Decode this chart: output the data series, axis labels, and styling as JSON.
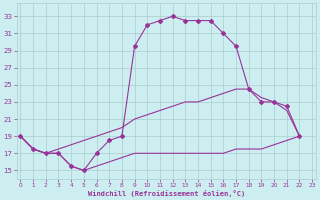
{
  "xlabel": "Windchill (Refroidissement éolien,°C)",
  "bg_color": "#cceef0",
  "grid_color": "#aacccc",
  "line_color": "#993399",
  "x_ticks": [
    0,
    1,
    2,
    3,
    4,
    5,
    6,
    7,
    8,
    9,
    10,
    11,
    12,
    13,
    14,
    15,
    16,
    17,
    18,
    19,
    20,
    21,
    22,
    23
  ],
  "y_ticks": [
    15,
    17,
    19,
    21,
    23,
    25,
    27,
    29,
    31,
    33
  ],
  "xlim": [
    -0.3,
    23.3
  ],
  "ylim": [
    14.0,
    34.5
  ],
  "line1_x": [
    0,
    1,
    2,
    3,
    4,
    5,
    6,
    7,
    8,
    9,
    10,
    11,
    12,
    13,
    14,
    15,
    16,
    17,
    18,
    19,
    20,
    21,
    22
  ],
  "line1_y": [
    19,
    17.5,
    17,
    17,
    15.5,
    15,
    17.0,
    18.5,
    19.0,
    29.5,
    32.0,
    32.5,
    33.0,
    32.5,
    32.5,
    32.5,
    31.0,
    29.5,
    24.5,
    23.0,
    23.0,
    22.5,
    19.0
  ],
  "line2_x": [
    0,
    1,
    2,
    3,
    4,
    5,
    6,
    7,
    8,
    9,
    10,
    11,
    12,
    13,
    14,
    15,
    16,
    17,
    18,
    19,
    20,
    21,
    22
  ],
  "line2_y": [
    19.0,
    17.5,
    17.0,
    17.5,
    18.0,
    18.5,
    19.0,
    19.5,
    20.0,
    21.0,
    21.5,
    22.0,
    22.5,
    23.0,
    23.0,
    23.5,
    24.0,
    24.5,
    24.5,
    23.5,
    23.0,
    22.0,
    19.0
  ],
  "line3_x": [
    0,
    1,
    2,
    3,
    4,
    5,
    6,
    7,
    8,
    9,
    10,
    11,
    12,
    13,
    14,
    15,
    16,
    17,
    18,
    19,
    20,
    21,
    22
  ],
  "line3_y": [
    19.0,
    17.5,
    17.0,
    17.0,
    15.5,
    15.0,
    15.5,
    16.0,
    16.5,
    17.0,
    17.0,
    17.0,
    17.0,
    17.0,
    17.0,
    17.0,
    17.0,
    17.5,
    17.5,
    17.5,
    18.0,
    18.5,
    19.0
  ]
}
